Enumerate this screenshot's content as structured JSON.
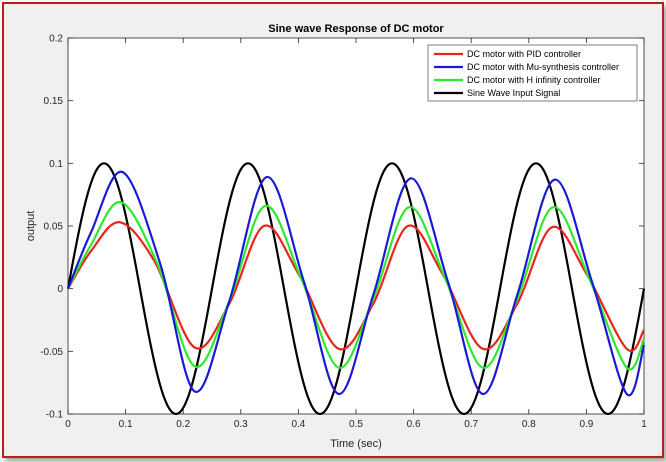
{
  "chart_data": {
    "type": "line",
    "title": "Sine wave Response of DC motor",
    "xlabel": "Time (sec)",
    "ylabel": "output",
    "xlim": [
      0,
      1
    ],
    "ylim": [
      -0.1,
      0.2
    ],
    "xticks": [
      "0",
      "0.1",
      "0.2",
      "0.3",
      "0.4",
      "0.5",
      "0.6",
      "0.7",
      "0.8",
      "0.9",
      "1"
    ],
    "yticks": [
      "-0.1",
      "-0.05",
      "0",
      "0.05",
      "0.1",
      "0.15",
      "0.2"
    ],
    "grid": false,
    "legend_position": "top-right",
    "series": [
      {
        "name": "DC motor with PID controller",
        "color": "#e8261e",
        "x": [
          0,
          0.04,
          0.09,
          0.15,
          0.22,
          0.28,
          0.34,
          0.4,
          0.47,
          0.53,
          0.59,
          0.65,
          0.72,
          0.78,
          0.84,
          0.9,
          0.97,
          1.0
        ],
        "y": [
          0,
          0.03,
          0.053,
          0.022,
          -0.047,
          -0.012,
          0.05,
          0.012,
          -0.048,
          -0.012,
          0.05,
          0.012,
          -0.048,
          -0.012,
          0.049,
          0.012,
          -0.048,
          -0.033
        ]
      },
      {
        "name": "DC motor with Mu-synthesis controller",
        "color": "#1a1ad6",
        "x": [
          0,
          0.04,
          0.095,
          0.16,
          0.22,
          0.28,
          0.345,
          0.41,
          0.47,
          0.53,
          0.595,
          0.66,
          0.72,
          0.78,
          0.845,
          0.91,
          0.97,
          1.0
        ],
        "y": [
          0,
          0.045,
          0.093,
          0.02,
          -0.082,
          -0.01,
          0.089,
          0.005,
          -0.084,
          -0.005,
          0.088,
          0.005,
          -0.084,
          -0.005,
          0.087,
          0.005,
          -0.084,
          -0.045
        ]
      },
      {
        "name": "DC motor with H infinity controller",
        "color": "#2ee82e",
        "x": [
          0,
          0.04,
          0.092,
          0.155,
          0.22,
          0.28,
          0.342,
          0.405,
          0.47,
          0.53,
          0.592,
          0.655,
          0.72,
          0.78,
          0.842,
          0.905,
          0.97,
          1.0
        ],
        "y": [
          0,
          0.035,
          0.069,
          0.02,
          -0.062,
          -0.01,
          0.066,
          0.008,
          -0.063,
          -0.008,
          0.065,
          0.008,
          -0.063,
          -0.008,
          0.065,
          0.008,
          -0.063,
          -0.04
        ]
      },
      {
        "name": "Sine Wave Input Signal",
        "color": "#000000",
        "function": "0.1*sin(2*pi*4*t)",
        "x": [
          0,
          0.0625,
          0.125,
          0.1875,
          0.25,
          0.3125,
          0.375,
          0.4375,
          0.5,
          0.5625,
          0.625,
          0.6875,
          0.75,
          0.8125,
          0.875,
          0.9375,
          1.0
        ],
        "y": [
          0,
          0.1,
          0,
          -0.1,
          0,
          0.1,
          0,
          -0.1,
          0,
          0.1,
          0,
          -0.1,
          0,
          0.1,
          0,
          -0.1,
          0
        ]
      }
    ]
  }
}
